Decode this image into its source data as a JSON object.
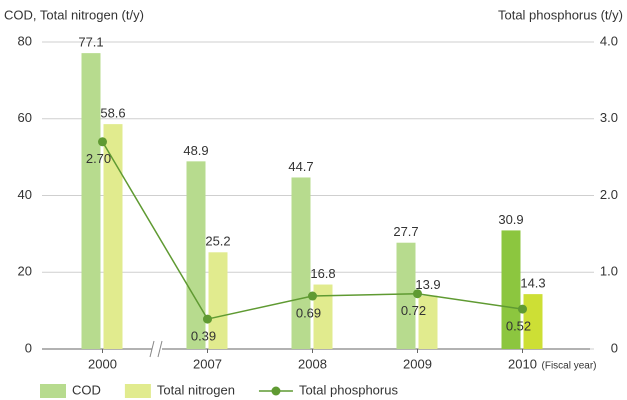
{
  "chart_data": {
    "type": "bar",
    "y_label": "COD, Total nitrogen (t/y)",
    "y2_label": "Total phosphorus (t/y)",
    "x_annotation": "(Fiscal year)",
    "categories": [
      "2000",
      "2007",
      "2008",
      "2009",
      "2010"
    ],
    "series": [
      {
        "name": "COD",
        "color": "#b7db8e",
        "colors": [
          "#b7db8e",
          "#b7db8e",
          "#b7db8e",
          "#b7db8e",
          "#8cc63f"
        ],
        "values": [
          77.1,
          48.9,
          44.7,
          27.7,
          30.9
        ]
      },
      {
        "name": "Total nitrogen",
        "color": "#e1eb8e",
        "colors": [
          "#e1eb8e",
          "#e1eb8e",
          "#e1eb8e",
          "#e1eb8e",
          "#cddf35"
        ],
        "values": [
          58.6,
          25.2,
          16.8,
          13.9,
          14.3
        ]
      },
      {
        "name": "Total phosphorus",
        "type": "line",
        "axis": "y2",
        "color": "#5f9a32",
        "values": [
          2.7,
          0.39,
          0.69,
          0.72,
          0.52
        ],
        "value_labels": [
          "2.70",
          "0.39",
          "0.69",
          "0.72",
          "0.52"
        ]
      }
    ],
    "ylim": [
      0,
      80
    ],
    "yticks": [
      0,
      20,
      40,
      60,
      80
    ],
    "y2lim": [
      0,
      4
    ],
    "y2ticks": [
      0,
      {
        "value": 1,
        "label": "1.0"
      },
      {
        "value": 2,
        "label": "2.0"
      },
      {
        "value": 3,
        "label": "3.0"
      },
      {
        "value": 4,
        "label": "4.0"
      }
    ],
    "grid": true,
    "legend": "bottom"
  }
}
